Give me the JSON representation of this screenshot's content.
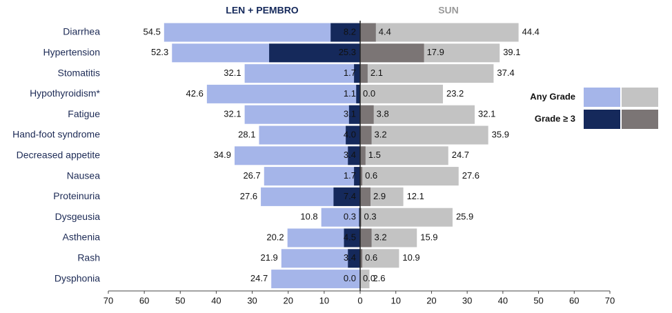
{
  "chart_data": {
    "type": "butterfly",
    "categories": [
      "Diarrhea",
      "Hypertension",
      "Stomatitis",
      "Hypothyroidism*",
      "Fatigue",
      "Hand-foot syndrome",
      "Decreased appetite",
      "Nausea",
      "Proteinuria",
      "Dysgeusia",
      "Asthenia",
      "Rash",
      "Dysphonia"
    ],
    "series_names": [
      "Any Grade",
      "Grade ≥ 3"
    ],
    "panels": [
      {
        "title": "LEN + PEMBRO",
        "title_color": "#14285a",
        "xlim": [
          70,
          0
        ],
        "xticks": [
          70,
          60,
          50,
          40,
          30,
          20,
          10
        ],
        "series": [
          {
            "color": "#a5b5e9",
            "values": [
              54.5,
              52.3,
              32.1,
              42.6,
              32.1,
              28.1,
              34.9,
              26.7,
              27.6,
              10.8,
              20.2,
              21.9,
              24.7
            ],
            "value_labels": [
              "54.5",
              "52.3",
              "32.1",
              "42.6",
              "32.1",
              "28.1",
              "34.9",
              "26.7",
              "27.6",
              "10.8",
              "20.2",
              "21.9",
              "24.7"
            ]
          },
          {
            "color": "#15295b",
            "values": [
              8.2,
              25.3,
              1.7,
              1.1,
              3.1,
              4.0,
              3.4,
              1.7,
              7.4,
              0.3,
              4.5,
              3.4,
              0.0
            ],
            "value_labels": [
              "8.2",
              "25.3",
              "1.7",
              "1.1",
              "3.1",
              "4.0",
              "3.4",
              "1.7",
              "7.4",
              "0.3",
              "4.5",
              "3.4",
              "0.0"
            ]
          }
        ]
      },
      {
        "title": "SUN",
        "title_color": "#9a9a9a",
        "xlim": [
          0,
          70
        ],
        "xticks": [
          0,
          10,
          20,
          30,
          40,
          50,
          60,
          70
        ],
        "series": [
          {
            "color": "#c3c3c3",
            "values": [
              44.4,
              39.1,
              37.4,
              23.2,
              32.1,
              35.9,
              24.7,
              27.6,
              12.1,
              25.9,
              15.9,
              10.9,
              2.6
            ],
            "value_labels": [
              "44.4",
              "39.1",
              "37.4",
              "23.2",
              "32.1",
              "35.9",
              "24.7",
              "27.6",
              "12.1",
              "25.9",
              "15.9",
              "10.9",
              "2.6"
            ]
          },
          {
            "color": "#7b7575",
            "values": [
              4.4,
              17.9,
              2.1,
              0.0,
              3.8,
              3.2,
              1.5,
              0.6,
              2.9,
              0.3,
              3.2,
              0.6,
              0.0
            ],
            "value_labels": [
              "4.4",
              "17.9",
              "2.1",
              "0.0",
              "3.8",
              "3.2",
              "1.5",
              "0.6",
              "2.9",
              "0.3",
              "3.2",
              "0.6",
              "0.0"
            ]
          }
        ]
      }
    ]
  }
}
